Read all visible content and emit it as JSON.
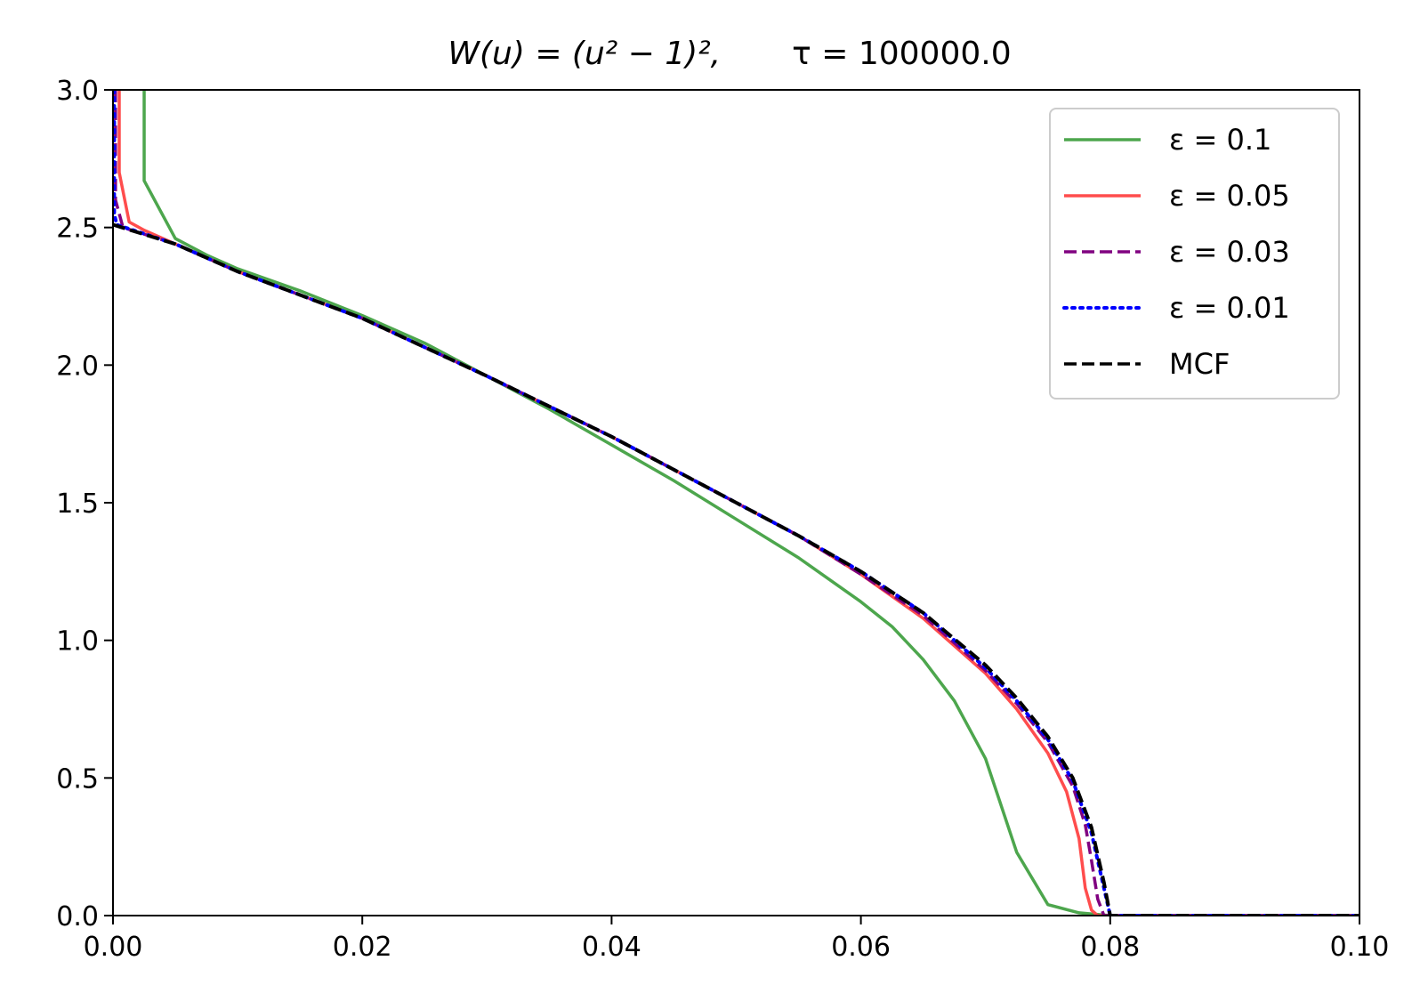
{
  "chart_data": {
    "type": "line",
    "title": {
      "lhs": "W(u) = (u² − 1)²,",
      "rhs": "τ = 100000.0"
    },
    "xlabel": "",
    "ylabel": "",
    "xlim": [
      0.0,
      0.1
    ],
    "ylim": [
      0.0,
      3.0
    ],
    "xticks": [
      0.0,
      0.02,
      0.04,
      0.06,
      0.08,
      0.1
    ],
    "xtick_labels": [
      "0.00",
      "0.02",
      "0.04",
      "0.06",
      "0.08",
      "0.10"
    ],
    "yticks": [
      0.0,
      0.5,
      1.0,
      1.5,
      2.0,
      2.5,
      3.0
    ],
    "ytick_labels": [
      "0.0",
      "0.5",
      "1.0",
      "1.5",
      "2.0",
      "2.5",
      "3.0"
    ],
    "grid": false,
    "legend_position": "top-right",
    "series": [
      {
        "name": "ε = 0.1",
        "color": "#4da64d",
        "style": "solid",
        "x": [
          0.0025,
          0.0025,
          0.005,
          0.0075,
          0.01,
          0.015,
          0.02,
          0.025,
          0.03,
          0.035,
          0.04,
          0.045,
          0.05,
          0.055,
          0.06,
          0.0625,
          0.065,
          0.0675,
          0.07,
          0.0725,
          0.075,
          0.0775,
          0.08,
          0.1
        ],
        "y": [
          3.0,
          2.67,
          2.46,
          2.4,
          2.35,
          2.27,
          2.18,
          2.08,
          1.96,
          1.84,
          1.71,
          1.58,
          1.44,
          1.3,
          1.14,
          1.05,
          0.93,
          0.78,
          0.57,
          0.23,
          0.04,
          0.01,
          0.0,
          0.0
        ]
      },
      {
        "name": "ε = 0.05",
        "color": "#ff4d4d",
        "style": "solid",
        "x": [
          0.0005,
          0.0005,
          0.0013,
          0.0025,
          0.005,
          0.01,
          0.02,
          0.03,
          0.04,
          0.05,
          0.055,
          0.06,
          0.065,
          0.07,
          0.0725,
          0.075,
          0.0765,
          0.0775,
          0.078,
          0.0785,
          0.079,
          0.1
        ],
        "y": [
          3.0,
          2.7,
          2.52,
          2.49,
          2.44,
          2.34,
          2.17,
          1.96,
          1.74,
          1.5,
          1.38,
          1.24,
          1.08,
          0.88,
          0.75,
          0.59,
          0.45,
          0.28,
          0.1,
          0.02,
          0.0,
          0.0
        ]
      },
      {
        "name": "ε = 0.03",
        "color": "#800080",
        "style": "dashed",
        "x": [
          0.0002,
          0.0002,
          0.0008,
          0.005,
          0.01,
          0.02,
          0.03,
          0.04,
          0.05,
          0.055,
          0.06,
          0.065,
          0.07,
          0.0725,
          0.075,
          0.077,
          0.078,
          0.0785,
          0.079,
          0.0795,
          0.1
        ],
        "y": [
          3.0,
          2.6,
          2.5,
          2.44,
          2.34,
          2.17,
          1.96,
          1.74,
          1.5,
          1.38,
          1.24,
          1.09,
          0.89,
          0.77,
          0.63,
          0.47,
          0.33,
          0.2,
          0.06,
          0.0,
          0.0
        ]
      },
      {
        "name": "ε = 0.01",
        "color": "#0000ff",
        "style": "dotted",
        "x": [
          0.0001,
          0.0001,
          0.0003,
          0.005,
          0.01,
          0.02,
          0.03,
          0.04,
          0.05,
          0.055,
          0.06,
          0.065,
          0.07,
          0.0725,
          0.075,
          0.077,
          0.0785,
          0.0795,
          0.08,
          0.1
        ],
        "y": [
          3.0,
          2.55,
          2.51,
          2.44,
          2.34,
          2.17,
          1.96,
          1.74,
          1.5,
          1.38,
          1.25,
          1.1,
          0.9,
          0.78,
          0.64,
          0.49,
          0.3,
          0.1,
          0.0,
          0.0
        ]
      },
      {
        "name": "MCF",
        "color": "#000000",
        "style": "dashed",
        "x": [
          0.0,
          0.005,
          0.01,
          0.02,
          0.03,
          0.04,
          0.05,
          0.055,
          0.06,
          0.065,
          0.07,
          0.0725,
          0.075,
          0.077,
          0.0785,
          0.0795,
          0.08,
          0.1
        ],
        "y": [
          2.51,
          2.44,
          2.34,
          2.17,
          1.96,
          1.74,
          1.5,
          1.38,
          1.25,
          1.1,
          0.91,
          0.79,
          0.65,
          0.5,
          0.32,
          0.12,
          0.0,
          0.0
        ]
      }
    ]
  }
}
